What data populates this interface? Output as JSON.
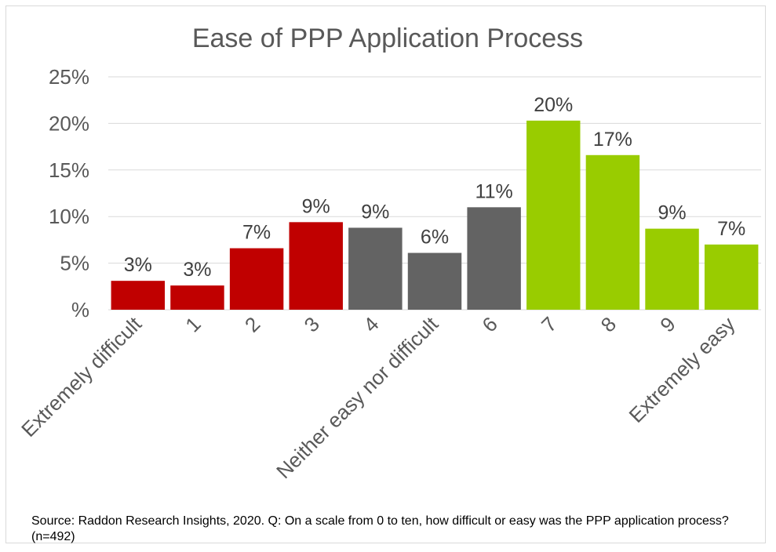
{
  "chart_data": {
    "type": "bar",
    "title": "Ease of PPP Application Process",
    "categories": [
      "Extremely difficult",
      "1",
      "2",
      "3",
      "4",
      "Neither easy nor difficult",
      "6",
      "7",
      "8",
      "9",
      "Extremely easy"
    ],
    "values": [
      3,
      3,
      7,
      9,
      9,
      6,
      11,
      20,
      17,
      9,
      7
    ],
    "bar_heights_pct": [
      3.1,
      2.6,
      6.6,
      9.4,
      8.8,
      6.1,
      11.0,
      20.3,
      16.6,
      8.7,
      7.0
    ],
    "data_labels": [
      "3%",
      "3%",
      "7%",
      "9%",
      "9%",
      "6%",
      "11%",
      "20%",
      "17%",
      "9%",
      "7%"
    ],
    "bar_colors": [
      "#c00000",
      "#c00000",
      "#c00000",
      "#c00000",
      "#636363",
      "#636363",
      "#636363",
      "#99cc00",
      "#99cc00",
      "#99cc00",
      "#99cc00"
    ],
    "y_ticks": [
      0,
      5,
      10,
      15,
      20,
      25
    ],
    "y_tick_labels": [
      "%",
      "5%",
      "10%",
      "15%",
      "20%",
      "25%"
    ],
    "ylim": [
      0,
      25
    ],
    "xlabel": "",
    "ylabel": "",
    "grid": true,
    "legend": "none"
  },
  "source": "Source: Raddon Research Insights, 2020. Q: On a scale from 0 to ten, how difficult or easy was the PPP application process? (n=492)"
}
